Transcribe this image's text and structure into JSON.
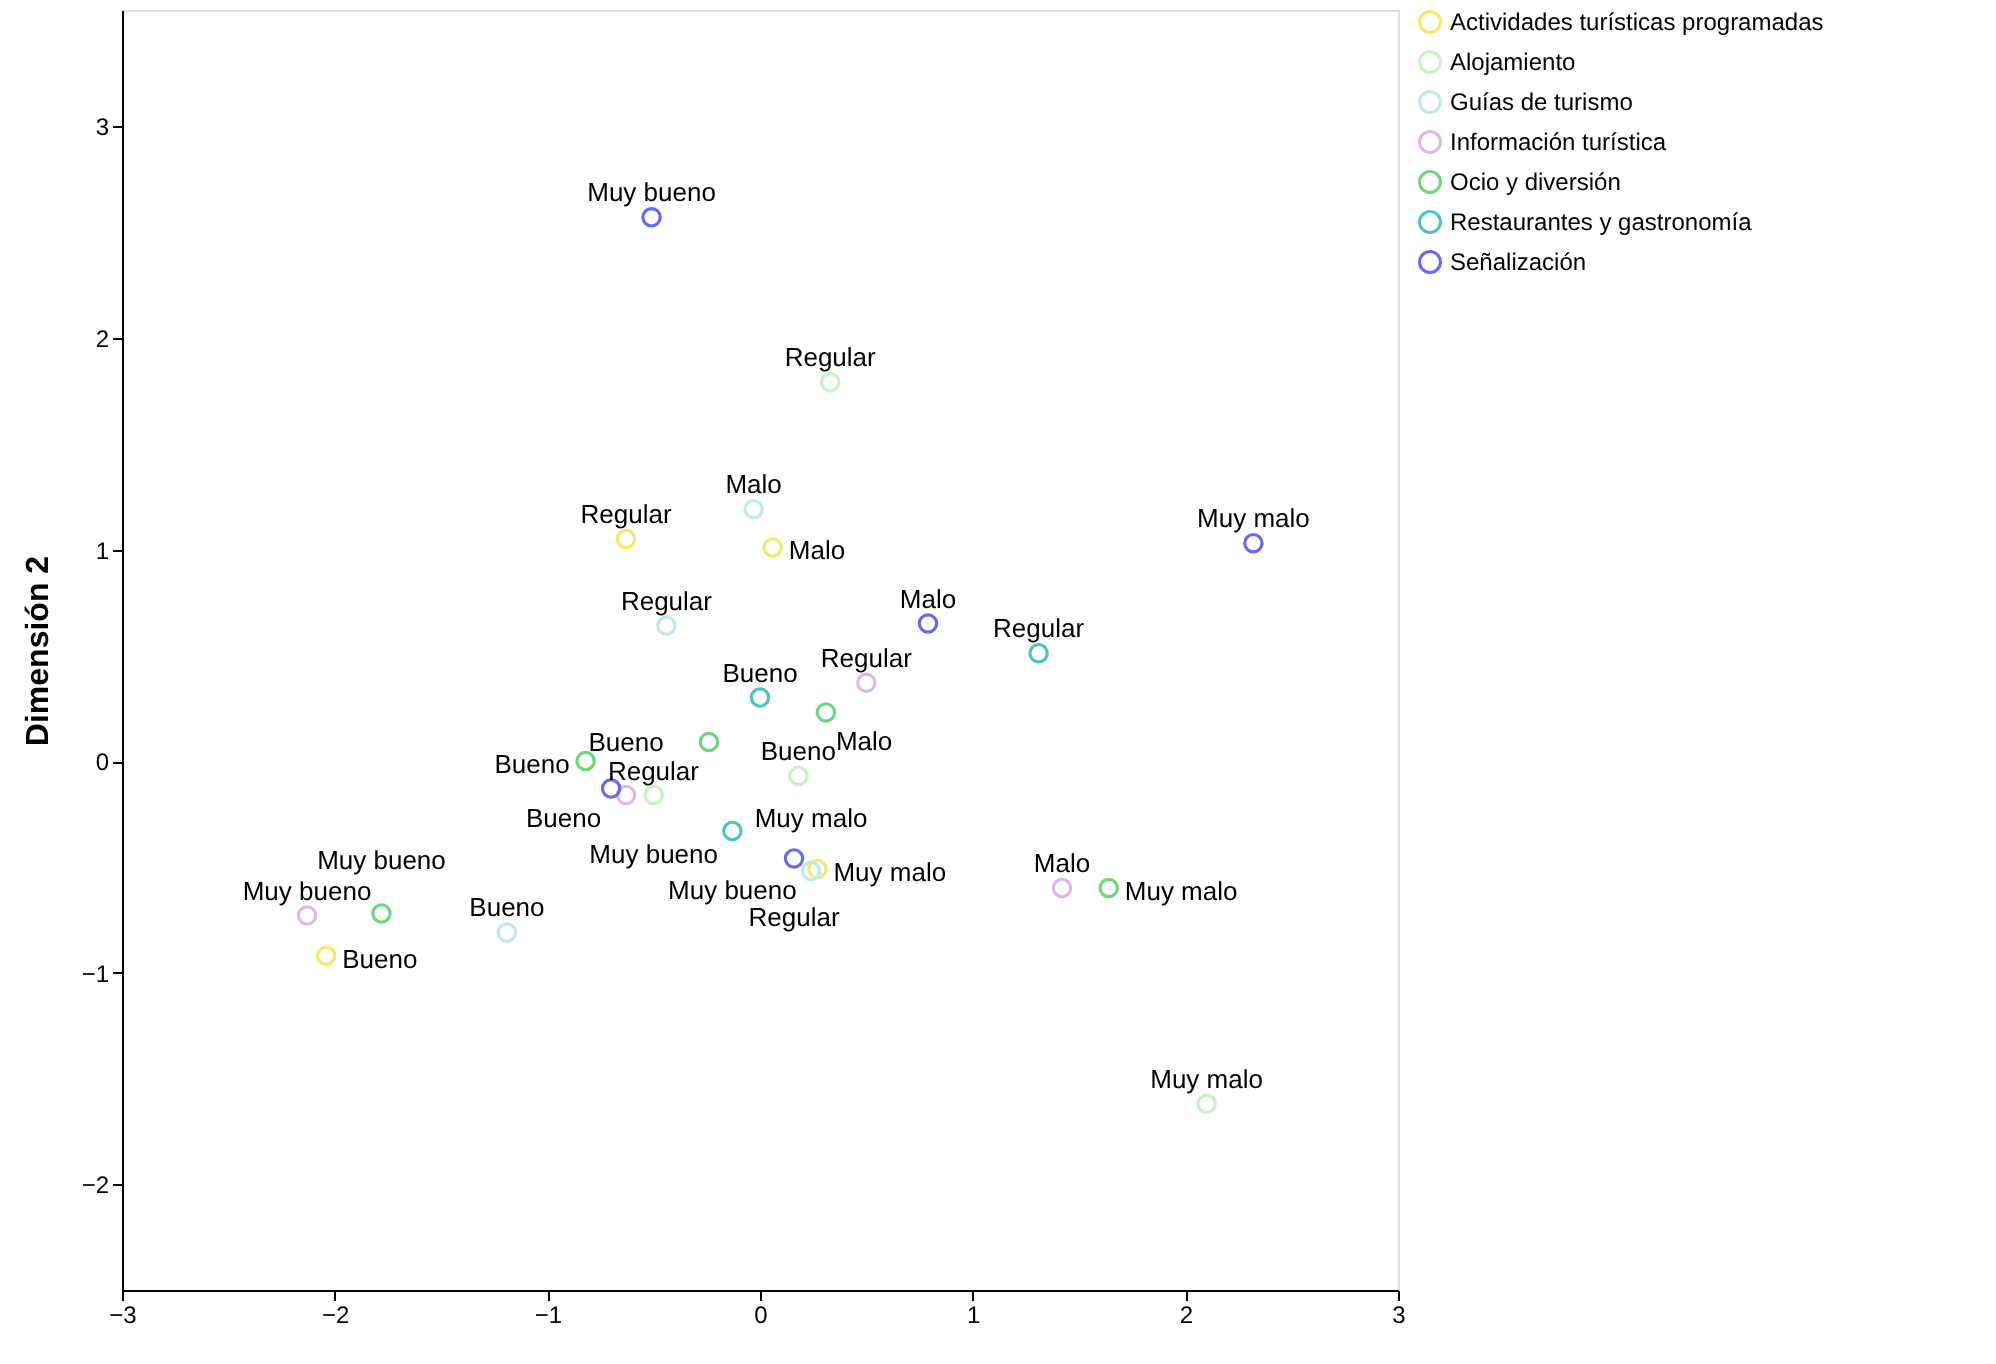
{
  "chart_data": {
    "type": "scatter",
    "ylabel": "Dimensión 2",
    "xlim": [
      -3,
      3
    ],
    "ylim": [
      -2.5,
      3.55
    ],
    "xticks": [
      -3,
      -2,
      -1,
      0,
      1,
      2,
      3
    ],
    "yticks": [
      -2,
      -1,
      0,
      1,
      2,
      3
    ],
    "grid": false,
    "legend": "top right",
    "marker": "circle",
    "series": [
      {
        "name": "Actividades turísticas programadas",
        "color": "#f2ea6a",
        "x": [
          -0.63,
          0.06,
          -2.04,
          0.27
        ],
        "values": [
          1.05,
          1.01,
          -0.92,
          -0.51
        ]
      },
      {
        "name": "Alojamiento",
        "color": "#c6f2c6",
        "x": [
          0.33,
          0.18,
          -0.5,
          2.1
        ],
        "values": [
          1.79,
          -0.07,
          -0.16,
          -1.62
        ]
      },
      {
        "name": "Guías de turismo",
        "color": "#bfe9ec",
        "x": [
          -0.03,
          -0.44,
          -1.19,
          0.24
        ],
        "values": [
          1.19,
          0.64,
          -0.81,
          -0.52
        ]
      },
      {
        "name": "Información turística",
        "color": "#dcb8ef",
        "x": [
          0.5,
          -2.13,
          1.42,
          -0.63
        ],
        "values": [
          0.37,
          -0.73,
          -0.6,
          -0.16
        ]
      },
      {
        "name": "Ocio y diversión",
        "color": "#6fd67a",
        "x": [
          -1.78,
          -0.82,
          -0.24,
          0.31,
          1.64
        ],
        "values": [
          -0.72,
          0.0,
          0.09,
          0.23,
          -0.6
        ]
      },
      {
        "name": "Restaurantes y gastronomía",
        "color": "#4cc4c6",
        "x": [
          0.0,
          1.31,
          -0.13
        ],
        "values": [
          0.3,
          0.51,
          -0.33
        ]
      },
      {
        "name": "Señalización",
        "color": "#6868f8",
        "x": [
          -0.51,
          2.32,
          0.79,
          -0.7,
          0.16
        ],
        "values": [
          2.57,
          1.03,
          0.65,
          -0.13,
          -0.46
        ]
      }
    ],
    "annotations": [
      {
        "text": "Regular",
        "x": -0.63,
        "y": 1.05
      },
      {
        "text": "Malo",
        "x": 0.06,
        "y": 1.01
      },
      {
        "text": "Bueno",
        "x": -2.04,
        "y": -0.92
      },
      {
        "text": "Muy malo",
        "x": 0.27,
        "y": -0.51
      },
      {
        "text": "Regular",
        "x": 0.33,
        "y": 1.79
      },
      {
        "text": "Bueno",
        "x": 0.18,
        "y": -0.07
      },
      {
        "text": "Muy bueno",
        "x": -0.5,
        "y": -0.16
      },
      {
        "text": "Muy malo",
        "x": 2.1,
        "y": -1.62
      },
      {
        "text": "Malo",
        "x": -0.03,
        "y": 1.19
      },
      {
        "text": "Regular",
        "x": -0.44,
        "y": 0.64
      },
      {
        "text": "Bueno",
        "x": -1.19,
        "y": -0.81
      },
      {
        "text": "Muy malo",
        "x": 0.24,
        "y": -0.52
      },
      {
        "text": "Regular",
        "x": 0.5,
        "y": 0.37
      },
      {
        "text": "Muy bueno",
        "x": -2.13,
        "y": -0.73
      },
      {
        "text": "Malo",
        "x": 1.42,
        "y": -0.6
      },
      {
        "text": "Bueno",
        "x": -0.63,
        "y": -0.16
      },
      {
        "text": "Muy bueno",
        "x": -1.78,
        "y": -0.72
      },
      {
        "text": "Bueno",
        "x": -0.82,
        "y": 0.0
      },
      {
        "text": "Regular",
        "x": -0.24,
        "y": 0.09
      },
      {
        "text": "Malo",
        "x": 0.31,
        "y": 0.23
      },
      {
        "text": "Muy malo",
        "x": 1.64,
        "y": -0.6
      },
      {
        "text": "Bueno",
        "x": 0.0,
        "y": 0.3
      },
      {
        "text": "Regular",
        "x": 1.31,
        "y": 0.51
      },
      {
        "text": "Muy bueno",
        "x": -0.13,
        "y": -0.33
      },
      {
        "text": "Muy bueno",
        "x": -0.51,
        "y": 2.57
      },
      {
        "text": "Muy malo",
        "x": 2.32,
        "y": 1.03
      },
      {
        "text": "Malo",
        "x": 0.79,
        "y": 0.65
      },
      {
        "text": "Bueno",
        "x": -0.7,
        "y": -0.13
      },
      {
        "text": "Regular",
        "x": 0.16,
        "y": -0.46
      }
    ]
  }
}
